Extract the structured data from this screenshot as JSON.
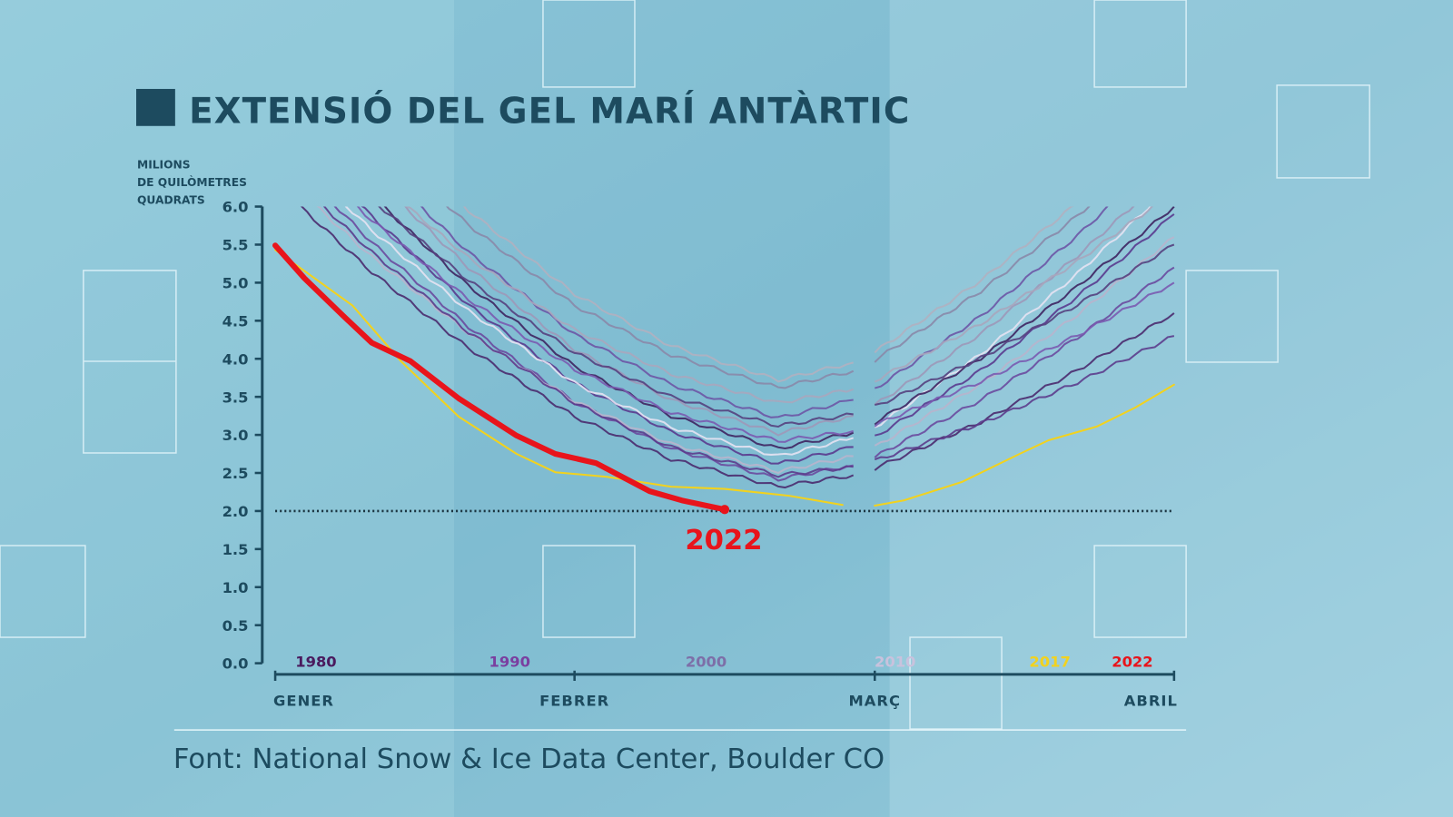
{
  "chart_data": {
    "type": "line",
    "title": "EXTENSIÓ DEL GEL MARÍ ANTÀRTIC",
    "ylabel": [
      "MILIONS",
      "DE QUILÒMETRES",
      "QUADRATS"
    ],
    "ylim": [
      0,
      6
    ],
    "yticks": [
      "0.0",
      "0.5",
      "1.0",
      "1.5",
      "2.0",
      "2.5",
      "3.0",
      "3.5",
      "4.0",
      "4.5",
      "5.0",
      "5.5",
      "6.0"
    ],
    "xlim": [
      "01-01",
      "04-01"
    ],
    "xticks": [
      {
        "label": "GENER",
        "date": "01-01"
      },
      {
        "label": "FEBRER",
        "date": "02-01"
      },
      {
        "label": "MARÇ",
        "date": "03-01"
      },
      {
        "label": "ABRIL",
        "date": "04-01"
      }
    ],
    "reference_line": {
      "value": 2.0,
      "style": "dotted"
    },
    "legend": [
      {
        "label": "1980",
        "color": "#4a1a5e"
      },
      {
        "label": "1990",
        "color": "#7a3fa0"
      },
      {
        "label": "2000",
        "color": "#7d6fa8"
      },
      {
        "label": "2010",
        "color": "#c9c2dd"
      },
      {
        "label": "2017",
        "color": "#f2d21e"
      },
      {
        "label": "2022",
        "color": "#e8141b"
      }
    ],
    "legend_placement": "bottom",
    "background_dates": [
      "01-01",
      "01-11",
      "01-21",
      "02-01",
      "02-10",
      "02-20",
      "02-27",
      "03-01",
      "03-12",
      "03-22",
      "04-01"
    ],
    "background_series": [
      {
        "color": "#4a2a6e",
        "values": [
          6.3,
          5.14,
          4.14,
          3.24,
          2.68,
          2.32,
          2.47,
          2.56,
          3.17,
          3.85,
          4.6
        ]
      },
      {
        "color": "#6a4a9e",
        "values": [
          6.8,
          5.53,
          4.42,
          3.43,
          2.82,
          2.42,
          2.6,
          2.71,
          3.46,
          4.28,
          5.2
        ]
      },
      {
        "color": "#b8b4cc",
        "values": [
          6.5,
          5.34,
          4.34,
          3.44,
          2.88,
          2.52,
          2.72,
          2.84,
          3.67,
          4.58,
          5.6
        ]
      },
      {
        "color": "#5a3a8e",
        "values": [
          7.2,
          5.87,
          4.71,
          3.68,
          3.04,
          2.62,
          2.84,
          2.97,
          3.85,
          4.82,
          5.9
        ]
      },
      {
        "color": "#e6e2f2",
        "values": [
          6.9,
          5.69,
          4.63,
          3.68,
          3.1,
          2.72,
          2.96,
          3.1,
          4.06,
          5.12,
          6.3
        ]
      },
      {
        "color": "#3e2460",
        "values": [
          7.5,
          6.14,
          4.96,
          3.9,
          3.25,
          2.82,
          3.03,
          3.16,
          4.01,
          4.95,
          6.0
        ]
      },
      {
        "color": "#7a5ab0",
        "values": [
          7.0,
          5.82,
          4.78,
          3.86,
          3.29,
          2.92,
          3.05,
          3.13,
          3.7,
          4.31,
          5.0
        ]
      },
      {
        "color": "#9d98b8",
        "values": [
          7.8,
          6.41,
          5.2,
          4.12,
          3.46,
          3.02,
          3.25,
          3.39,
          4.33,
          5.35,
          6.5
        ]
      },
      {
        "color": "#55407e",
        "values": [
          7.3,
          6.09,
          5.03,
          4.08,
          3.5,
          3.12,
          3.27,
          3.37,
          4.01,
          4.71,
          5.5
        ]
      },
      {
        "color": "#6d55a5",
        "values": [
          8.0,
          6.61,
          5.4,
          4.32,
          3.66,
          3.22,
          3.46,
          3.6,
          4.56,
          5.62,
          6.8
        ]
      },
      {
        "color": "#a9a6bd",
        "values": [
          7.6,
          6.39,
          5.33,
          4.38,
          3.8,
          3.42,
          3.6,
          3.71,
          4.46,
          5.28,
          6.2
        ]
      },
      {
        "color": "#8a88a8",
        "values": [
          8.3,
          6.94,
          5.76,
          4.7,
          4.05,
          3.62,
          3.84,
          3.98,
          4.89,
          5.88,
          7.0
        ]
      },
      {
        "color": "#b0b0c0",
        "values": [
          8.6,
          7.18,
          5.95,
          4.85,
          4.17,
          3.72,
          3.95,
          4.09,
          5.03,
          6.05,
          7.2
        ]
      },
      {
        "color": "#5c3c8c",
        "values": [
          6.6,
          5.4,
          4.35,
          3.42,
          2.84,
          2.47,
          2.58,
          2.66,
          3.15,
          3.69,
          4.3
        ]
      }
    ],
    "highlight_series": [
      {
        "name": "2017",
        "color": "#f2d21e",
        "segments": [
          [
            [
              "01-01",
              5.43
            ],
            [
              "01-09",
              4.7
            ],
            [
              "01-14",
              3.97
            ],
            [
              "01-20",
              3.24
            ],
            [
              "01-26",
              2.75
            ],
            [
              "01-30",
              2.51
            ],
            [
              "02-04",
              2.45
            ],
            [
              "02-10",
              2.32
            ],
            [
              "02-15",
              2.29
            ],
            [
              "02-21",
              2.2
            ],
            [
              "02-26",
              2.08
            ]
          ],
          [
            [
              "03-01",
              2.07
            ],
            [
              "03-04",
              2.14
            ],
            [
              "03-10",
              2.38
            ],
            [
              "03-16",
              2.75
            ],
            [
              "03-19",
              2.93
            ],
            [
              "03-24",
              3.11
            ],
            [
              "03-28",
              3.36
            ],
            [
              "04-01",
              3.66
            ]
          ]
        ]
      },
      {
        "name": "2022",
        "color": "#e8141b",
        "segments": [
          [
            [
              "01-01",
              5.49
            ],
            [
              "01-04",
              5.06
            ],
            [
              "01-08",
              4.57
            ],
            [
              "01-11",
              4.21
            ],
            [
              "01-15",
              3.97
            ],
            [
              "01-20",
              3.48
            ],
            [
              "01-26",
              2.99
            ],
            [
              "01-30",
              2.75
            ],
            [
              "02-03",
              2.63
            ],
            [
              "02-08",
              2.26
            ],
            [
              "02-11",
              2.14
            ],
            [
              "02-15",
              2.02
            ]
          ]
        ]
      }
    ],
    "annotation": {
      "text": "2022",
      "color": "#e8141b"
    }
  },
  "source": "Font: National Snow & Ice Data Center, Boulder CO"
}
